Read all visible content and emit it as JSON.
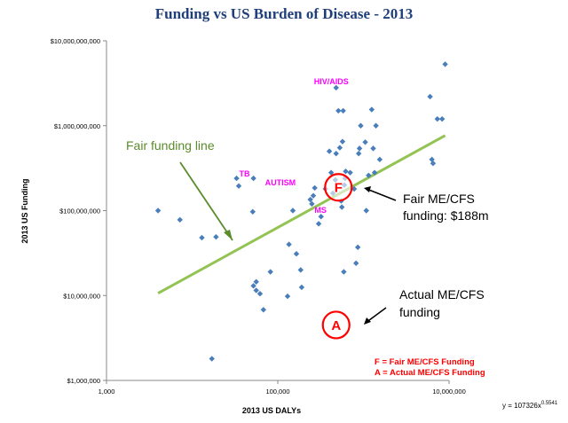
{
  "chart_data": {
    "type": "scatter",
    "title": "Funding vs US Burden of Disease - 2013",
    "xlabel": "2013 US DALYs",
    "ylabel": "2013 US Funding",
    "x_scale": "log",
    "y_scale": "log",
    "xlim": [
      1000,
      10000000
    ],
    "ylim": [
      1000000,
      10000000000
    ],
    "x_ticks": [
      1000,
      100000,
      10000000
    ],
    "x_tick_labels": [
      "1,000",
      "100,000",
      "10,000,000"
    ],
    "y_ticks": [
      1000000,
      10000000,
      100000000,
      1000000000,
      10000000000
    ],
    "y_tick_labels": [
      "$1,000,000",
      "$10,000,000",
      "$100,000,000",
      "$1,000,000,000",
      "$10,000,000,000"
    ],
    "grid": false,
    "points": [
      {
        "x": 4000,
        "y": 100000000
      },
      {
        "x": 7200,
        "y": 78000000
      },
      {
        "x": 13000,
        "y": 48000000
      },
      {
        "x": 17000,
        "y": 1800000
      },
      {
        "x": 19000,
        "y": 49000000
      },
      {
        "x": 33000,
        "y": 240000000
      },
      {
        "x": 35000,
        "y": 195000000
      },
      {
        "x": 52000,
        "y": 240000000
      },
      {
        "x": 51000,
        "y": 97000000
      },
      {
        "x": 52000,
        "y": 13000000
      },
      {
        "x": 56000,
        "y": 14500000
      },
      {
        "x": 56000,
        "y": 11500000
      },
      {
        "x": 62000,
        "y": 10500000
      },
      {
        "x": 68000,
        "y": 6800000
      },
      {
        "x": 82000,
        "y": 19000000
      },
      {
        "x": 130000,
        "y": 9800000
      },
      {
        "x": 135000,
        "y": 40000000
      },
      {
        "x": 150000,
        "y": 100000000
      },
      {
        "x": 165000,
        "y": 31000000
      },
      {
        "x": 190000,
        "y": 12500000
      },
      {
        "x": 185000,
        "y": 20000000
      },
      {
        "x": 240000,
        "y": 135000000
      },
      {
        "x": 260000,
        "y": 150000000
      },
      {
        "x": 270000,
        "y": 185000000
      },
      {
        "x": 250000,
        "y": 120000000
      },
      {
        "x": 300000,
        "y": 70000000
      },
      {
        "x": 320000,
        "y": 85000000
      },
      {
        "x": 360000,
        "y": 180000000
      },
      {
        "x": 400000,
        "y": 500000000
      },
      {
        "x": 420000,
        "y": 280000000
      },
      {
        "x": 440000,
        "y": 160000000
      },
      {
        "x": 470000,
        "y": 230000000
      },
      {
        "x": 480000,
        "y": 470000000
      },
      {
        "x": 510000,
        "y": 1500000000
      },
      {
        "x": 530000,
        "y": 550000000
      },
      {
        "x": 550000,
        "y": 130000000
      },
      {
        "x": 560000,
        "y": 110000000
      },
      {
        "x": 570000,
        "y": 650000000
      },
      {
        "x": 580000,
        "y": 1500000000
      },
      {
        "x": 600000,
        "y": 200000000
      },
      {
        "x": 610000,
        "y": 240000000
      },
      {
        "x": 620000,
        "y": 290000000
      },
      {
        "x": 700000,
        "y": 280000000
      },
      {
        "x": 780000,
        "y": 180000000
      },
      {
        "x": 820000,
        "y": 24000000
      },
      {
        "x": 860000,
        "y": 37000000
      },
      {
        "x": 880000,
        "y": 470000000
      },
      {
        "x": 900000,
        "y": 540000000
      },
      {
        "x": 930000,
        "y": 1000000000
      },
      {
        "x": 1050000,
        "y": 640000000
      },
      {
        "x": 1080000,
        "y": 100000000
      },
      {
        "x": 1150000,
        "y": 260000000
      },
      {
        "x": 1250000,
        "y": 1550000000
      },
      {
        "x": 1300000,
        "y": 540000000
      },
      {
        "x": 1350000,
        "y": 280000000
      },
      {
        "x": 1400000,
        "y": 1000000000
      },
      {
        "x": 1550000,
        "y": 400000000
      },
      {
        "x": 590000,
        "y": 19000000
      },
      {
        "x": 6000000,
        "y": 2200000000
      },
      {
        "x": 6300000,
        "y": 400000000
      },
      {
        "x": 6500000,
        "y": 360000000
      },
      {
        "x": 7300000,
        "y": 1200000000
      },
      {
        "x": 8300000,
        "y": 1200000000
      },
      {
        "x": 9000000,
        "y": 5300000000
      },
      {
        "x": 480000,
        "y": 2800000000
      }
    ],
    "trendline": {
      "equation": "y = 107326x",
      "exponent": "0.5541",
      "coefficient": 107326,
      "power": 0.5541,
      "x_range": [
        4000,
        9000000
      ],
      "color": "#92c353"
    },
    "labels": [
      {
        "text": "HIV/AIDS",
        "x": 480000,
        "y": 2800000000
      },
      {
        "text": "TB",
        "x": 33000,
        "y": 240000000
      },
      {
        "text": "AUTISM",
        "x": 270000,
        "y": 185000000
      },
      {
        "text": "MS",
        "x": 250000,
        "y": 120000000
      }
    ],
    "markers": [
      {
        "letter": "F",
        "x": 510000,
        "y": 188000000
      },
      {
        "letter": "A",
        "x": 480000,
        "y": 4500000
      }
    ],
    "annotations": {
      "fair_line": "Fair funding line",
      "fair_me_line1": "Fair ME/CFS",
      "fair_me_line2": "funding: $188m",
      "actual_line1": "Actual ME/CFS",
      "actual_line2": "funding",
      "legend_f": "F = Fair ME/CFS Funding",
      "legend_a": "A = Actual ME/CFS Funding"
    },
    "colors": {
      "point": "#4a7ebb",
      "trend": "#92c353",
      "annotation_green": "#5b8c2a",
      "pink": "#ff00ff",
      "red": "#ff0000",
      "title": "#1f3f7a"
    }
  }
}
